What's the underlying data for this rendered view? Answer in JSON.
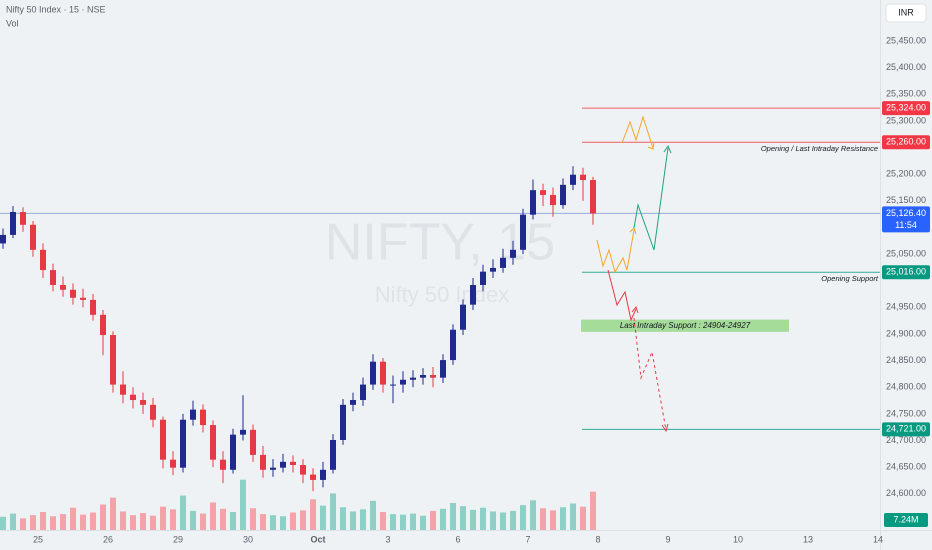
{
  "chart_data": {
    "type": "candlestick",
    "title": "Nifty 50 Index · 15 · NSE",
    "volume_title": "Vol",
    "currency": "INR",
    "watermark": "NIFTY, 15",
    "watermark_subtitle": "Nifty 50 Index",
    "up_color": "#1f2a8c",
    "down_color": "#e53946",
    "vol_up_color": "#8fd0c6",
    "vol_down_color": "#f4a3a8",
    "x": [
      0,
      1,
      2,
      3,
      4,
      5,
      6,
      7,
      8,
      9,
      10,
      11,
      12,
      13,
      14,
      15,
      16,
      17,
      18,
      19,
      20,
      21,
      22,
      23,
      24,
      25,
      26,
      27,
      28,
      29,
      30,
      31,
      32,
      33,
      34,
      35,
      36,
      37,
      38,
      39,
      40,
      41,
      42,
      43,
      44,
      45,
      46,
      47,
      48,
      49,
      50,
      51,
      52,
      53,
      54,
      55,
      56,
      57,
      58,
      59
    ],
    "open": [
      25070,
      25086,
      25129,
      25105,
      25058,
      25020,
      24992,
      24983,
      24968,
      24964,
      24936,
      24898,
      24805,
      24786,
      24776,
      24767,
      24739,
      24664,
      24649,
      24739,
      24758,
      24729,
      24664,
      24645,
      24711,
      24720,
      24673,
      24645,
      24649,
      24660,
      24654,
      24636,
      24626,
      24645,
      24701,
      24767,
      24776,
      24805,
      24848,
      24805,
      24805,
      24814,
      24818,
      24823,
      24818,
      24851,
      24908,
      24955,
      24992,
      25017,
      25024,
      25043,
      25058,
      25124,
      25170,
      25161,
      25142,
      25180,
      25199,
      25189
    ],
    "high": [
      25098,
      25140,
      25138,
      25112,
      25070,
      25032,
      25008,
      24995,
      24985,
      24975,
      24945,
      24905,
      24830,
      24800,
      24790,
      24780,
      24745,
      24680,
      24750,
      24775,
      24768,
      24738,
      24680,
      24722,
      24785,
      24730,
      24690,
      24665,
      24675,
      24672,
      24665,
      24648,
      24660,
      24712,
      24778,
      24790,
      24818,
      24862,
      24855,
      24822,
      24830,
      24832,
      24836,
      24838,
      24862,
      24918,
      24965,
      25005,
      25030,
      25040,
      25060,
      25075,
      25135,
      25190,
      25182,
      25175,
      25192,
      25215,
      25212,
      25195
    ],
    "low": [
      25060,
      25080,
      25092,
      25045,
      25005,
      24980,
      24970,
      24955,
      24950,
      24925,
      24860,
      24790,
      24770,
      24760,
      24750,
      24725,
      24648,
      24635,
      24640,
      24728,
      24715,
      24650,
      24620,
      24638,
      24700,
      24660,
      24630,
      24632,
      24640,
      24640,
      24620,
      24605,
      24612,
      24638,
      24692,
      24755,
      24765,
      24795,
      24790,
      24770,
      24790,
      24800,
      24805,
      24800,
      24808,
      24842,
      24898,
      24945,
      24980,
      25005,
      25015,
      25030,
      25050,
      25115,
      25140,
      25120,
      25135,
      25170,
      25150,
      25105
    ],
    "close": [
      25086,
      25129,
      25105,
      25058,
      25020,
      24992,
      24983,
      24968,
      24964,
      24936,
      24898,
      24805,
      24786,
      24776,
      24767,
      24739,
      24664,
      24649,
      24739,
      24758,
      24729,
      24664,
      24645,
      24711,
      24720,
      24673,
      24645,
      24649,
      24660,
      24654,
      24636,
      24626,
      24645,
      24701,
      24767,
      24776,
      24805,
      24848,
      24805,
      24805,
      24814,
      24818,
      24823,
      24818,
      24851,
      24908,
      24955,
      24992,
      25017,
      25024,
      25043,
      25058,
      25124,
      25170,
      25161,
      25142,
      25180,
      25199,
      25189,
      25126.4
    ],
    "volume": [
      2.5,
      3.1,
      2.2,
      2.8,
      3.4,
      2.6,
      3.0,
      4.2,
      2.9,
      3.3,
      4.8,
      6.1,
      3.5,
      2.8,
      3.2,
      2.7,
      4.4,
      3.9,
      6.5,
      3.6,
      3.1,
      5.2,
      4.0,
      3.4,
      9.5,
      4.1,
      3.0,
      2.8,
      2.6,
      3.3,
      3.7,
      5.8,
      4.6,
      6.9,
      4.3,
      3.5,
      3.9,
      5.5,
      3.4,
      3.0,
      2.9,
      3.1,
      2.7,
      3.6,
      4.0,
      5.1,
      4.5,
      3.8,
      4.2,
      3.5,
      3.3,
      3.6,
      4.7,
      5.6,
      4.1,
      3.7,
      4.3,
      5.0,
      4.4,
      7.24
    ],
    "xlim": [
      -0.3,
      87.7
    ],
    "ylim": [
      24532,
      25527
    ],
    "y2lim": [
      0,
      100
    ],
    "xticks": [
      {
        "value": 3.5,
        "label": "25"
      },
      {
        "value": 10.5,
        "label": "26"
      },
      {
        "value": 17.5,
        "label": "29"
      },
      {
        "value": 24.5,
        "label": "30"
      },
      {
        "value": 31.5,
        "label": "Oct"
      },
      {
        "value": 38.5,
        "label": "3"
      },
      {
        "value": 45.5,
        "label": "6"
      },
      {
        "value": 52.5,
        "label": "7"
      },
      {
        "value": 59.5,
        "label": "8"
      },
      {
        "value": 66.5,
        "label": "9"
      },
      {
        "value": 73.5,
        "label": "10"
      },
      {
        "value": 80.5,
        "label": "13"
      },
      {
        "value": 87.5,
        "label": "14"
      }
    ],
    "yticks": [
      {
        "value": 25450,
        "label": "25,450.00"
      },
      {
        "value": 25400,
        "label": "25,400.00"
      },
      {
        "value": 25350,
        "label": "25,350.00"
      },
      {
        "value": 25300,
        "label": "25,300.00"
      },
      {
        "value": 25200,
        "label": "25,200.00"
      },
      {
        "value": 25150,
        "label": "25,150.00"
      },
      {
        "value": 25050,
        "label": "25,050.00"
      },
      {
        "value": 24950,
        "label": "24,950.00"
      },
      {
        "value": 24900,
        "label": "24,900.00"
      },
      {
        "value": 24850,
        "label": "24,850.00"
      },
      {
        "value": 24800,
        "label": "24,800.00"
      },
      {
        "value": 24750,
        "label": "24,750.00"
      },
      {
        "value": 24700,
        "label": "24,700.00"
      },
      {
        "value": 24650,
        "label": "24,650.00"
      },
      {
        "value": 24600,
        "label": "24,600.00"
      }
    ],
    "levels": [
      {
        "value": 25324,
        "label": "25,324.00",
        "color": "#f23645"
      },
      {
        "value": 25260,
        "label": "25,260.00",
        "color": "#f23645",
        "note": "Opening / Last Intraday Resistance"
      },
      {
        "value": 25016,
        "label": "25,016.00",
        "color": "#089981",
        "note": "Opening Support"
      },
      {
        "value": 24721,
        "label": "24,721.00",
        "color": "#089981"
      }
    ],
    "current": {
      "value": 25126.4,
      "label": "25,126.40",
      "countdown": "11:54",
      "color": "#2962ff"
    },
    "zone": {
      "low": 24904,
      "high": 24927,
      "label": "Last Intraday Support : 24904-24927",
      "color": "#a5dc9a"
    },
    "volume_tag": {
      "value": 7.24,
      "label": "7.24M",
      "color": "#089981"
    }
  }
}
